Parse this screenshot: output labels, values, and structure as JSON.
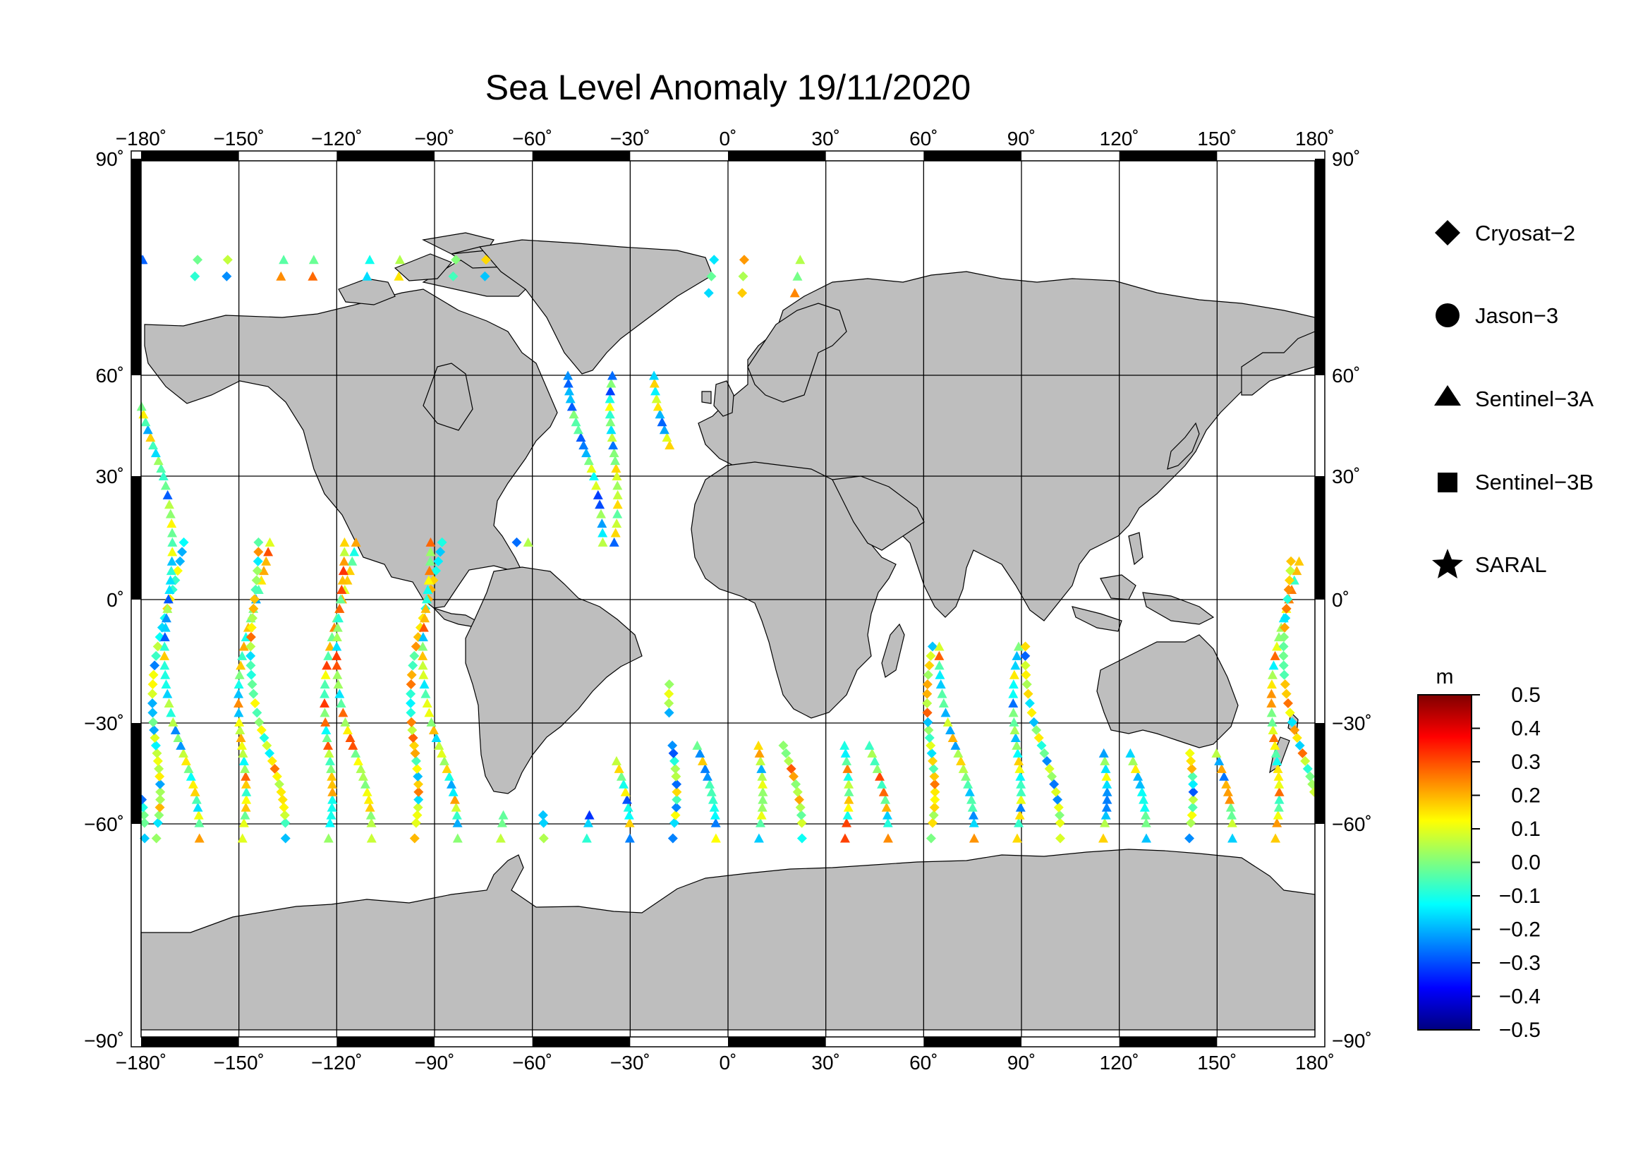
{
  "title": "Sea Level Anomaly 19/11/2020",
  "map": {
    "lon_ticks": [
      "−180˚",
      "−150˚",
      "−120˚",
      "−90˚",
      "−60˚",
      "−30˚",
      "0˚",
      "30˚",
      "60˚",
      "90˚",
      "120˚",
      "150˚",
      "180˚"
    ],
    "lat_ticks": [
      "90˚",
      "60˚",
      "30˚",
      "0˚",
      "−30˚",
      "−60˚",
      "−90˚"
    ],
    "land_color": "#bebebe",
    "ocean_color": "#ffffff",
    "grid": true
  },
  "legend": {
    "items": [
      {
        "label": "Cryosat−2",
        "symbol": "diamond"
      },
      {
        "label": "Jason−3",
        "symbol": "circle"
      },
      {
        "label": "Sentinel−3A",
        "symbol": "triangle"
      },
      {
        "label": "Sentinel−3B",
        "symbol": "square"
      },
      {
        "label": "SARAL",
        "symbol": "star"
      }
    ]
  },
  "colorbar": {
    "unit": "m",
    "labels": [
      "0.5",
      "0.4",
      "0.3",
      "0.2",
      "0.1",
      "0.0",
      "−0.1",
      "−0.2",
      "−0.3",
      "−0.4",
      "−0.5"
    ],
    "colors": [
      "#00007f",
      "#0000ff",
      "#007fff",
      "#00ffff",
      "#7fff7f",
      "#ffff00",
      "#ff7f00",
      "#ff0000",
      "#7f0000"
    ]
  },
  "chart_data": {
    "type": "scatter",
    "title": "Sea Level Anomaly 19/11/2020",
    "xlabel": "",
    "ylabel": "",
    "xlim": [
      -180,
      180
    ],
    "ylim": [
      -90,
      90
    ],
    "value_range": [
      -0.5,
      0.5
    ],
    "unit": "m",
    "series": [
      {
        "name": "Cryosat−2",
        "symbol": "diamond"
      },
      {
        "name": "Sentinel−3A",
        "symbol": "triangle"
      }
    ]
  }
}
